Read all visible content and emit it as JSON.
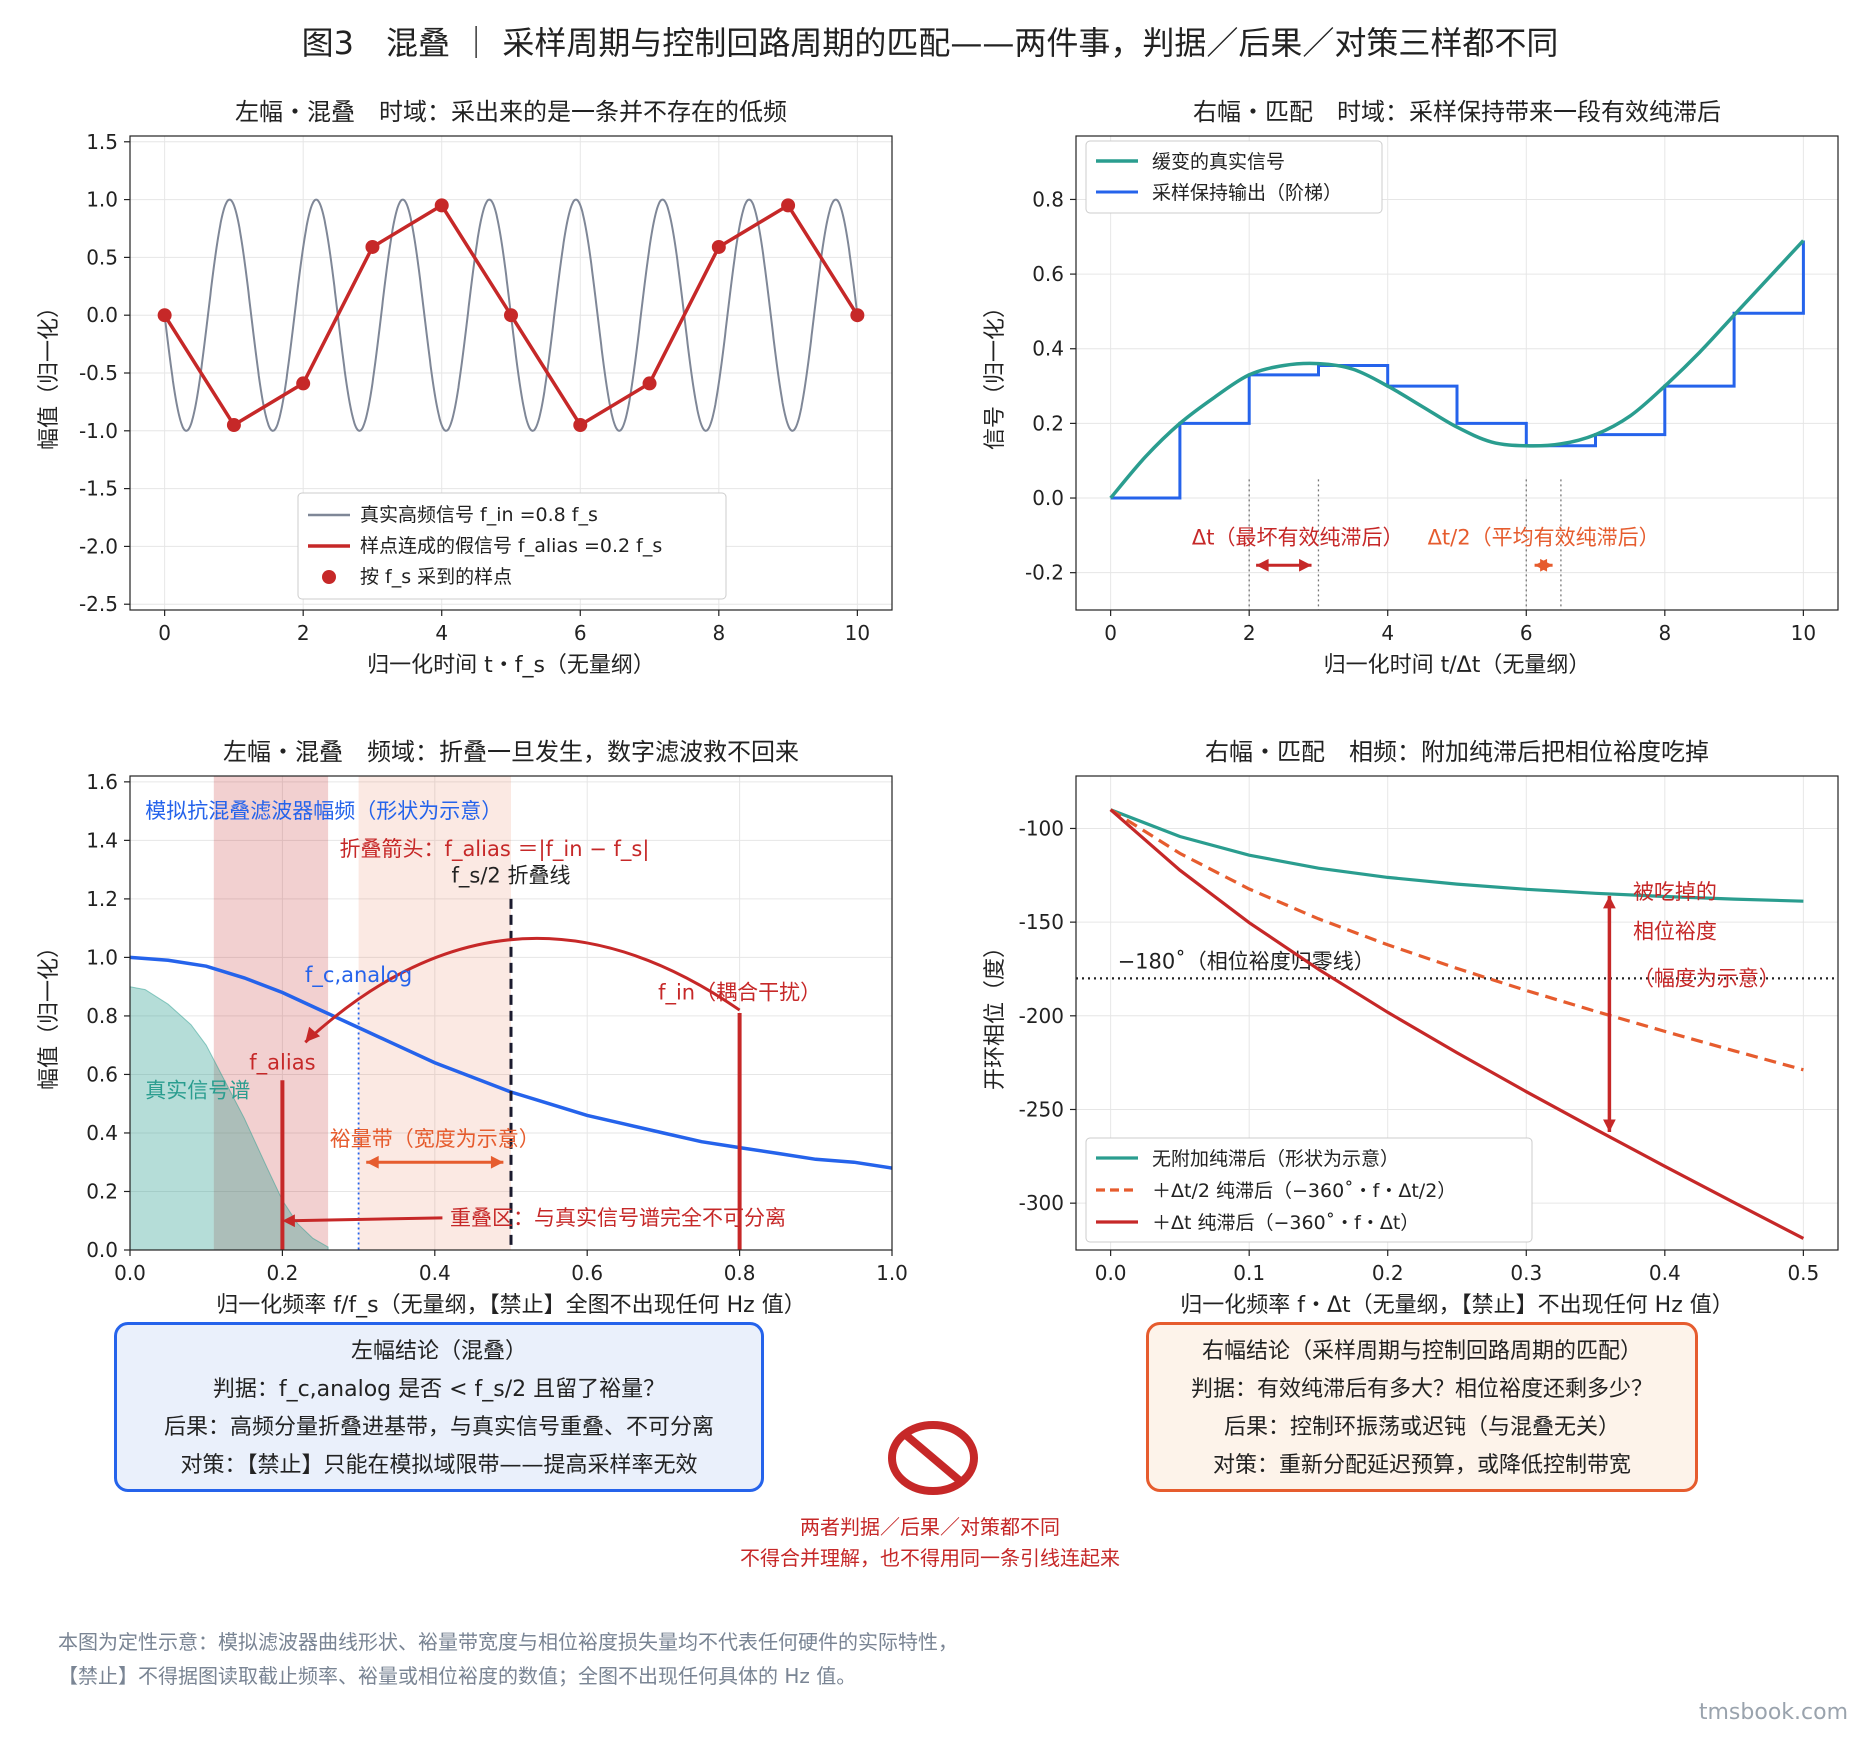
{
  "figure_title": "图3　混叠 ｜ 采样周期与控制回路周期的匹配——两件事，判据／后果／对策三样都不同",
  "chart_data": [
    {
      "id": "tl",
      "type": "line",
      "title": "左幅・混叠　时域：采出来的是一条并不存在的低频",
      "xlabel": "归一化时间 t・f_s（无量纲）",
      "ylabel": "幅值（归一化）",
      "xlim": [
        -0.5,
        10.5
      ],
      "ylim": [
        -2.55,
        1.55
      ],
      "xticks": [
        0,
        2,
        4,
        6,
        8,
        10
      ],
      "yticks": [
        -2.5,
        -2.0,
        -1.5,
        -1.0,
        -0.5,
        0.0,
        0.5,
        1.0,
        1.5
      ],
      "grid": true,
      "legend_position": "lower center",
      "series": [
        {
          "name": "真实高频信号 f_in =0.8 f_s",
          "color": "#7f8797",
          "kind": "sin",
          "freq": 0.8
        },
        {
          "name": "样点连成的假信号 f_alias =0.2 f_s",
          "color": "#c62828",
          "x": [
            0,
            1,
            2,
            3,
            4,
            5,
            6,
            7,
            8,
            9,
            10
          ],
          "y": [
            0,
            -0.95,
            -0.59,
            0.59,
            0.95,
            0,
            -0.95,
            -0.59,
            0.59,
            0.95,
            0
          ]
        },
        {
          "name": "按 f_s 采到的样点",
          "color": "#c62828",
          "kind": "markers"
        }
      ]
    },
    {
      "id": "tr",
      "type": "line",
      "title": "右幅・匹配　时域：采样保持带来一段有效纯滞后",
      "xlabel": "归一化时间 t/Δt（无量纲）",
      "ylabel": "信号（归一化）",
      "xlim": [
        -0.5,
        10.5
      ],
      "ylim": [
        -0.3,
        0.97
      ],
      "xticks": [
        0,
        2,
        4,
        6,
        8,
        10
      ],
      "yticks": [
        -0.2,
        0.0,
        0.2,
        0.4,
        0.6,
        0.8
      ],
      "grid": true,
      "legend_position": "upper left",
      "series": [
        {
          "name": "缓变的真实信号",
          "color": "#2a9d8f",
          "x": [
            0,
            0.5,
            1,
            1.5,
            2,
            2.5,
            3,
            3.5,
            4,
            4.5,
            5,
            5.5,
            6,
            6.5,
            7,
            7.5,
            8,
            8.5,
            9,
            9.5,
            10
          ],
          "y": [
            0,
            0.11,
            0.2,
            0.27,
            0.33,
            0.355,
            0.36,
            0.345,
            0.3,
            0.245,
            0.19,
            0.15,
            0.14,
            0.145,
            0.17,
            0.22,
            0.3,
            0.39,
            0.49,
            0.59,
            0.69
          ]
        },
        {
          "name": "采样保持输出（阶梯）",
          "color": "#2563eb",
          "steps": [
            0,
            0.2,
            0.33,
            0.355,
            0.3,
            0.2,
            0.14,
            0.17,
            0.3,
            0.495,
            0.69
          ]
        }
      ],
      "annotations": [
        {
          "text": "Δt（最坏有效纯滞后）",
          "color": "#c62828"
        },
        {
          "text": "Δt/2（平均有效纯滞后）",
          "color": "#e65c2e"
        }
      ]
    },
    {
      "id": "bl",
      "type": "line",
      "title": "左幅・混叠　频域：折叠一旦发生，数字滤波救不回来",
      "xlabel": "归一化频率 f/f_s（无量纲，【禁止】全图不出现任何 Hz 值）",
      "ylabel": "幅值（归一化）",
      "xlim": [
        0,
        1.0
      ],
      "ylim": [
        0,
        1.62
      ],
      "xticks": [
        0.0,
        0.2,
        0.4,
        0.6,
        0.8,
        1.0
      ],
      "yticks": [
        0.0,
        0.2,
        0.4,
        0.6,
        0.8,
        1.0,
        1.2,
        1.4,
        1.6
      ],
      "grid": true,
      "series": [
        {
          "name": "模拟抗混叠滤波器幅频（形状为示意）",
          "color": "#2563eb",
          "x": [
            0,
            0.05,
            0.1,
            0.15,
            0.2,
            0.25,
            0.3,
            0.35,
            0.4,
            0.45,
            0.5,
            0.55,
            0.6,
            0.65,
            0.7,
            0.75,
            0.8,
            0.85,
            0.9,
            0.95,
            1.0
          ],
          "y": [
            1.0,
            0.99,
            0.97,
            0.93,
            0.88,
            0.82,
            0.76,
            0.7,
            0.64,
            0.59,
            0.54,
            0.5,
            0.46,
            0.43,
            0.4,
            0.37,
            0.35,
            0.33,
            0.31,
            0.3,
            0.28
          ]
        },
        {
          "name": "真实信号谱",
          "color": "#2a9d8f",
          "x": [
            0,
            0.02,
            0.05,
            0.08,
            0.1,
            0.12,
            0.15,
            0.18,
            0.2,
            0.22,
            0.24,
            0.26
          ],
          "y": [
            0.9,
            0.89,
            0.84,
            0.77,
            0.7,
            0.6,
            0.45,
            0.28,
            0.17,
            0.09,
            0.04,
            0.01
          ]
        }
      ],
      "bands": [
        [
          0.11,
          0.26
        ],
        [
          0.3,
          0.5
        ]
      ],
      "vlines": [
        {
          "x": 0.5,
          "label": "f_s/2 折叠线"
        },
        {
          "x": 0.3,
          "label": "f_c,analog"
        }
      ],
      "spikes": [
        {
          "x": 0.2,
          "y": 0.58,
          "label": "f_alias"
        },
        {
          "x": 0.8,
          "y": 0.81,
          "label": "f_in（耦合干扰）"
        }
      ],
      "annotations": [
        {
          "text": "模拟抗混叠滤波器幅频（形状为示意）",
          "color": "#2563eb"
        },
        {
          "text": "折叠箭头：f_alias ＝|f_in − f_s|",
          "color": "#c62828"
        },
        {
          "text": "裕量带（宽度为示意）",
          "color": "#e65c2e"
        },
        {
          "text": "重叠区：与真实信号谱完全不可分离",
          "color": "#c62828"
        },
        {
          "text": "真实信号谱",
          "color": "#2a9d8f"
        }
      ]
    },
    {
      "id": "br",
      "type": "line",
      "title": "右幅・匹配　相频：附加纯滞后把相位裕度吃掉",
      "xlabel": "归一化频率 f・Δt（无量纲，【禁止】不出现任何 Hz 值）",
      "ylabel": "开环相位（度）",
      "xlim": [
        -0.025,
        0.525
      ],
      "ylim": [
        -325,
        -72
      ],
      "xticks": [
        0.0,
        0.1,
        0.2,
        0.3,
        0.4,
        0.5
      ],
      "yticks": [
        -300,
        -250,
        -200,
        -150,
        -100
      ],
      "grid": true,
      "legend_position": "lower left",
      "series": [
        {
          "name": "无附加纯滞后（形状为示意）",
          "color": "#2a9d8f",
          "dash": "none",
          "x": [
            0,
            0.05,
            0.1,
            0.15,
            0.2,
            0.25,
            0.3,
            0.35,
            0.4,
            0.45,
            0.5
          ],
          "y": [
            -90,
            -104.3,
            -114.3,
            -121.2,
            -126.1,
            -129.7,
            -132.5,
            -134.6,
            -136.3,
            -137.7,
            -138.8
          ]
        },
        {
          "name": "＋Δt/2 纯滞后（−360˚・f・Δt/2）",
          "color": "#e65c2e",
          "dash": "dash",
          "x": [
            0,
            0.05,
            0.1,
            0.15,
            0.2,
            0.25,
            0.3,
            0.35,
            0.4,
            0.45,
            0.5
          ],
          "y": [
            -90,
            -113.3,
            -132.3,
            -148.2,
            -162.1,
            -174.7,
            -186.5,
            -197.6,
            -208.3,
            -218.7,
            -228.8
          ]
        },
        {
          "name": "＋Δt 纯滞后（−360˚・f・Δt）",
          "color": "#c62828",
          "dash": "none",
          "x": [
            0,
            0.05,
            0.1,
            0.15,
            0.2,
            0.25,
            0.3,
            0.35,
            0.4,
            0.45,
            0.5
          ],
          "y": [
            -90,
            -122.3,
            -150.3,
            -175.2,
            -198.1,
            -219.7,
            -240.5,
            -260.6,
            -280.3,
            -299.7,
            -318.8
          ]
        }
      ],
      "hlines": [
        {
          "y": -180,
          "label": "−180˚（相位裕度归零线）"
        }
      ],
      "annotations": [
        {
          "text": "被吃掉的",
          "color": "#c62828"
        },
        {
          "text": "相位裕度",
          "color": "#c62828"
        },
        {
          "text": "（幅度为示意）",
          "color": "#c62828"
        }
      ]
    }
  ],
  "left_box": {
    "title": "左幅结论（混叠）",
    "line1": "判据：f_c,analog 是否 < f_s/2 且留了裕量？",
    "line2": "后果：高频分量折叠进基带，与真实信号重叠、不可分离",
    "line3": "对策：【禁止】只能在模拟域限带——提高采样率无效",
    "border_color": "#2563eb",
    "bg_color": "#eaf0fb"
  },
  "right_box": {
    "title": "右幅结论（采样周期与控制回路周期的匹配）",
    "line1": "判据：有效纯滞后有多大？相位裕度还剩多少？",
    "line2": "后果：控制环振荡或迟钝（与混叠无关）",
    "line3": "对策：重新分配延迟预算，或降低控制带宽",
    "border_color": "#e65c2e",
    "bg_color": "#fdf3ea"
  },
  "warning": {
    "line1": "两者判据／后果／对策都不同",
    "line2": "不得合并理解，也不得用同一条引线连起来",
    "icon": "prohibited-icon"
  },
  "notes": {
    "line1": "本图为定性示意：模拟滤波器曲线形状、裕量带宽度与相位裕度损失量均不代表任何硬件的实际特性，",
    "line2": "【禁止】不得据图读取截止频率、裕量或相位裕度的数值；全图不出现任何具体的 Hz 值。"
  },
  "watermark": "tmsbook.com"
}
